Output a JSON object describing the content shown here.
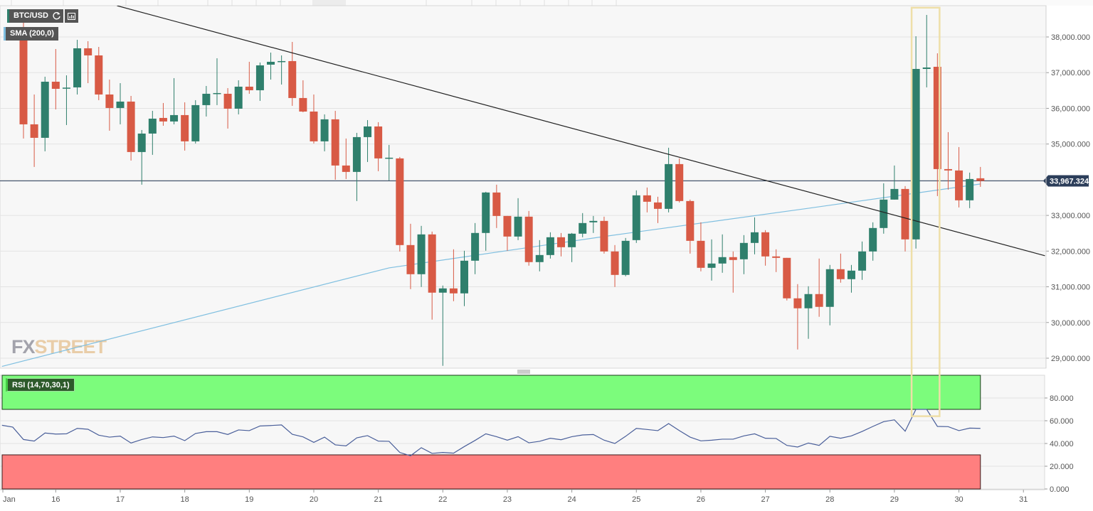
{
  "chart_data": {
    "type": "candlestick",
    "symbol": "BTC/USD",
    "timeframe_bars_per_day": 6,
    "first_bar": {
      "day": 15,
      "bar_of_day": 3
    },
    "x_tick_labels": [
      "Jan",
      "16",
      "17",
      "18",
      "19",
      "20",
      "21",
      "22",
      "23",
      "24",
      "25",
      "26",
      "27",
      "28",
      "29",
      "30",
      "31"
    ],
    "x_tick_days": [
      15,
      16,
      17,
      18,
      19,
      20,
      21,
      22,
      23,
      24,
      25,
      26,
      27,
      28,
      29,
      30,
      31
    ],
    "y_ticks": [
      29000,
      30000,
      31000,
      32000,
      33000,
      34000,
      35000,
      36000,
      37000,
      38000
    ],
    "y_tick_labels": [
      "29,000.000",
      "30,000.000",
      "31,000.000",
      "32,000.000",
      "33,000.000",
      "33,967.324",
      "35,000.000",
      "36,000.000",
      "37,000.000",
      "38,000.000"
    ],
    "ylim": [
      28700,
      38900
    ],
    "ohlc": [
      [
        38139,
        38438,
        35154,
        35552
      ],
      [
        35552,
        36388,
        34358,
        35174
      ],
      [
        35174,
        36886,
        34796,
        36746
      ],
      [
        36746,
        37662,
        35970,
        36547
      ],
      [
        36560,
        36925,
        35532,
        36580
      ],
      [
        36587,
        37920,
        36388,
        37682
      ],
      [
        37682,
        37881,
        36706,
        37483
      ],
      [
        37483,
        37721,
        36229,
        36388
      ],
      [
        36388,
        36806,
        35373,
        36010
      ],
      [
        36010,
        36706,
        35552,
        36189
      ],
      [
        36189,
        36348,
        34537,
        34776
      ],
      [
        34776,
        35393,
        33861,
        35293
      ],
      [
        35293,
        35930,
        34697,
        35711
      ],
      [
        35731,
        36149,
        35512,
        35632
      ],
      [
        35632,
        36846,
        35552,
        35811
      ],
      [
        35811,
        36169,
        34816,
        35075
      ],
      [
        35075,
        36229,
        35015,
        36090
      ],
      [
        36090,
        36627,
        35771,
        36408
      ],
      [
        36408,
        37403,
        36090,
        36428
      ],
      [
        36408,
        36567,
        35433,
        35990
      ],
      [
        35990,
        36786,
        35831,
        36607
      ],
      [
        36607,
        37304,
        36408,
        36507
      ],
      [
        36507,
        37284,
        36209,
        37204
      ],
      [
        37224,
        37562,
        36806,
        37304
      ],
      [
        37304,
        37483,
        36667,
        37324
      ],
      [
        37324,
        37861,
        36070,
        36289
      ],
      [
        36289,
        36786,
        35890,
        35910
      ],
      [
        35910,
        36388,
        35015,
        35075
      ],
      [
        35075,
        35831,
        34796,
        35692
      ],
      [
        35692,
        35930,
        34000,
        34398
      ],
      [
        34398,
        35154,
        34020,
        34219
      ],
      [
        34219,
        35313,
        33403,
        35194
      ],
      [
        35194,
        35671,
        34497,
        35492
      ],
      [
        35492,
        35612,
        34239,
        34597
      ],
      [
        34597,
        34975,
        33980,
        34617
      ],
      [
        34597,
        34637,
        31990,
        32169
      ],
      [
        32169,
        32766,
        30935,
        31353
      ],
      [
        31353,
        32707,
        30995,
        32468
      ],
      [
        32468,
        32547,
        30080,
        30836
      ],
      [
        30836,
        31035,
        28786,
        30955
      ],
      [
        30955,
        32050,
        30597,
        30816
      ],
      [
        30816,
        32010,
        30458,
        31731
      ],
      [
        31731,
        32786,
        31353,
        32508
      ],
      [
        32508,
        33662,
        32010,
        33642
      ],
      [
        33642,
        33861,
        32647,
        32985
      ],
      [
        32985,
        32985,
        32010,
        32408
      ],
      [
        32408,
        33483,
        32308,
        32965
      ],
      [
        32965,
        33125,
        31592,
        31692
      ],
      [
        31692,
        32308,
        31433,
        31890
      ],
      [
        31890,
        32527,
        31791,
        32388
      ],
      [
        32388,
        32507,
        31851,
        32109
      ],
      [
        32109,
        32508,
        31692,
        32488
      ],
      [
        32488,
        33065,
        32388,
        32786
      ],
      [
        32806,
        32985,
        32508,
        32846
      ],
      [
        32846,
        32965,
        31930,
        31990
      ],
      [
        31990,
        32169,
        30995,
        31333
      ],
      [
        31333,
        32368,
        31294,
        32288
      ],
      [
        32308,
        33702,
        32229,
        33562
      ],
      [
        33562,
        33781,
        33085,
        33383
      ],
      [
        33363,
        33523,
        32786,
        33184
      ],
      [
        33184,
        34896,
        33085,
        34438
      ],
      [
        34438,
        34597,
        33363,
        33403
      ],
      [
        33403,
        33443,
        31930,
        32288
      ],
      [
        32288,
        32806,
        31433,
        31532
      ],
      [
        31532,
        32328,
        31174,
        31652
      ],
      [
        31652,
        32468,
        31393,
        31831
      ],
      [
        31831,
        31990,
        30836,
        31751
      ],
      [
        31771,
        32448,
        31353,
        32229
      ],
      [
        32229,
        32945,
        31910,
        32527
      ],
      [
        32527,
        32587,
        31592,
        31851
      ],
      [
        31851,
        32050,
        31413,
        31811
      ],
      [
        31811,
        31811,
        30617,
        30677
      ],
      [
        30677,
        31075,
        29244,
        30398
      ],
      [
        30398,
        31015,
        29543,
        30796
      ],
      [
        30796,
        31791,
        30160,
        30438
      ],
      [
        30438,
        31612,
        29920,
        31493
      ],
      [
        31493,
        31930,
        31115,
        31214
      ],
      [
        31214,
        31612,
        30836,
        31453
      ],
      [
        31453,
        32269,
        31194,
        31990
      ],
      [
        31990,
        32806,
        31731,
        32647
      ],
      [
        32647,
        33900,
        32488,
        33443
      ],
      [
        33443,
        34398,
        33443,
        33741
      ],
      [
        33741,
        33821,
        31990,
        32328
      ],
      [
        32328,
        38020,
        32070,
        37104
      ],
      [
        37104,
        38617,
        36587,
        37144
      ],
      [
        37164,
        37542,
        33542,
        34298
      ],
      [
        34298,
        35333,
        33722,
        34259
      ],
      [
        34259,
        34915,
        33224,
        33423
      ],
      [
        33423,
        34199,
        33204,
        34020
      ],
      [
        34040,
        34358,
        33801,
        33967
      ]
    ],
    "last_price": 33967.324,
    "last_price_label": "33,967.324",
    "sma": {
      "label": "SMA (200,0)",
      "color": "#7fbfe0",
      "points": [
        [
          -2,
          28770
        ],
        [
          34,
          31530
        ],
        [
          54,
          32410
        ],
        [
          73,
          33200
        ],
        [
          89,
          33880
        ]
      ]
    },
    "trendline": {
      "color": "#222222",
      "points": [
        [
          8.7,
          38876
        ],
        [
          95,
          31871
        ]
      ]
    },
    "highlight": {
      "color": "#eedfa8",
      "from_bar": 82.6,
      "to_bar": 85.2,
      "price_top": 38820,
      "rsi_bottom": 64
    },
    "rsi": {
      "label": "RSI (14,70,30,1)",
      "start_bar": -2,
      "overbought": 70,
      "oversold": 30,
      "ticks": [
        0,
        20,
        40,
        60,
        80
      ],
      "tick_labels": [
        "0.000",
        "20.000",
        "40.000",
        "60.000",
        "80.000"
      ],
      "ylim": [
        0,
        100
      ],
      "line_color": "#4a5f9a",
      "values": [
        56.0,
        54.4,
        43.5,
        42.1,
        49.2,
        48.3,
        48.5,
        53.3,
        52.5,
        47.3,
        45.6,
        46.5,
        40.4,
        43.5,
        45.8,
        45.2,
        46.5,
        42.5,
        48.8,
        50.4,
        50.4,
        47.9,
        51.9,
        51.3,
        55.4,
        55.8,
        56.3,
        48.1,
        45.8,
        41.0,
        45.6,
        38.8,
        37.9,
        45.0,
        46.9,
        42.1,
        41.9,
        32.1,
        29.2,
        36.3,
        31.3,
        32.1,
        31.5,
        37.3,
        42.7,
        48.5,
        46.0,
        42.9,
        46.0,
        40.6,
        41.9,
        44.6,
        43.3,
        46.0,
        47.5,
        47.9,
        42.9,
        40.0,
        46.3,
        53.3,
        52.3,
        51.3,
        57.5,
        51.3,
        45.6,
        42.3,
        42.9,
        43.8,
        43.8,
        46.7,
        48.5,
        44.6,
        44.4,
        38.3,
        36.9,
        40.4,
        38.3,
        46.3,
        44.6,
        46.7,
        50.6,
        55.0,
        59.2,
        60.8,
        50.8,
        70.0,
        70.0,
        55.0,
        54.8,
        51.3,
        53.5,
        53.3
      ]
    },
    "colors": {
      "up": "#2f7f6c",
      "down": "#d85a45",
      "overbought_zone": "#7cfc7c",
      "oversold_zone": "#ff7f7f",
      "price_label_bg": "#2c3e5a"
    }
  },
  "legend": {
    "symbol": "BTC/USD",
    "sma": "SMA (200,0)",
    "rsi": "RSI (14,70,30,1)"
  },
  "icons": {
    "refresh": "refresh-icon",
    "indicators": "indicators-icon",
    "resize": "pane-resize-handle"
  },
  "watermark": {
    "text": "FXSTREET"
  }
}
